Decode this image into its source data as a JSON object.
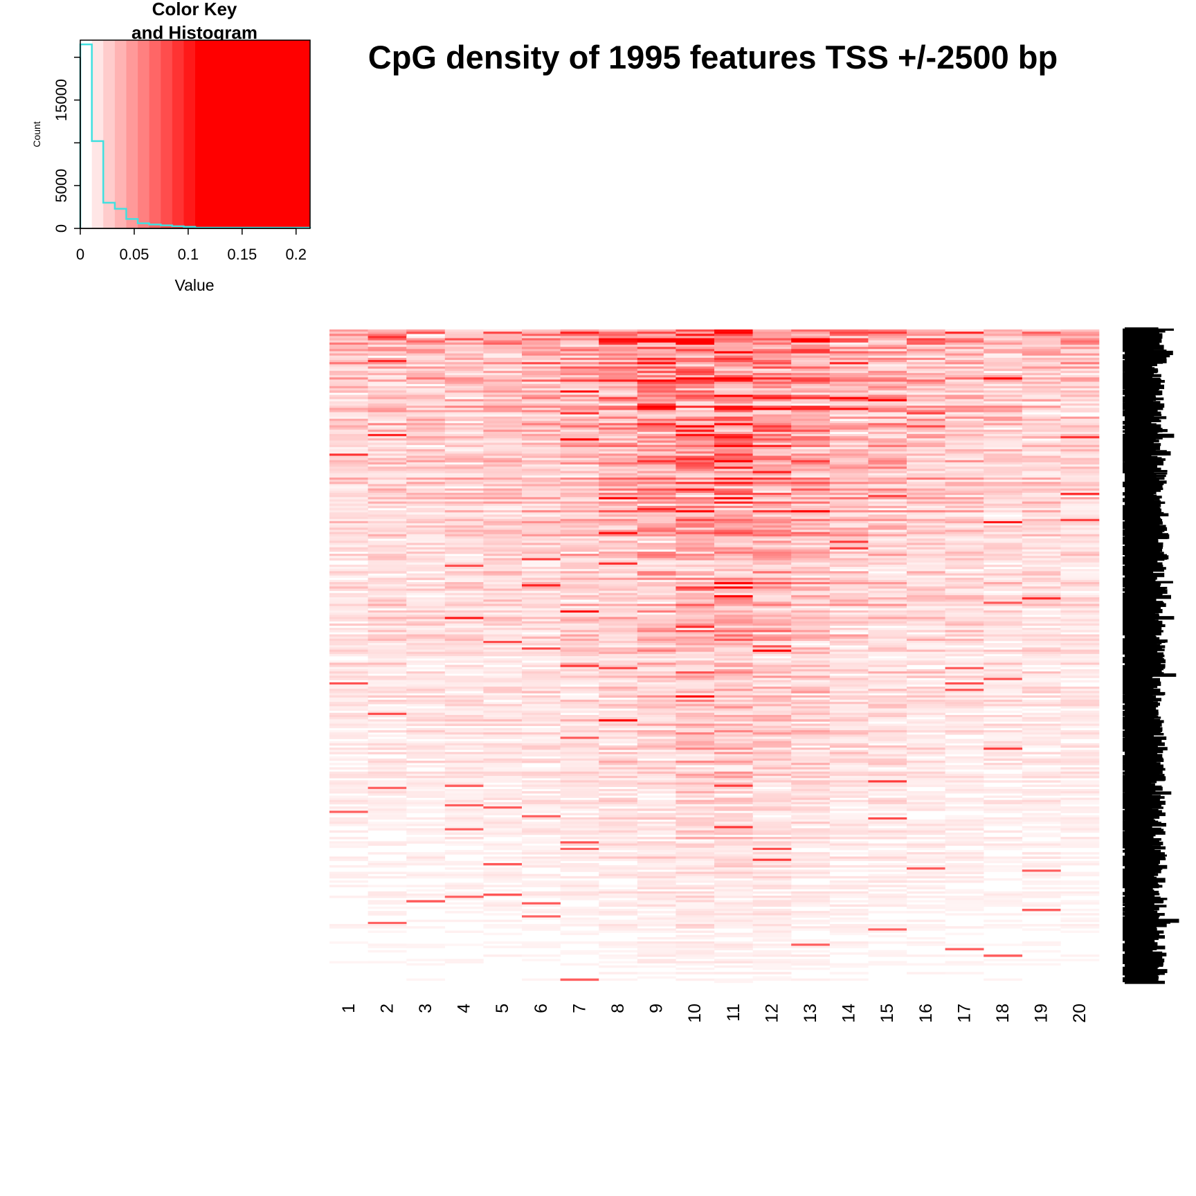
{
  "chart_data": [
    {
      "type": "histogram",
      "title": "Color Key\nand Histogram",
      "xlabel": "Value",
      "ylabel": "Count",
      "xlim": [
        0,
        0.213
      ],
      "ylim": [
        0,
        22000
      ],
      "x_ticks": [
        "0",
        "0.05",
        "0.1",
        "0.15",
        "0.2"
      ],
      "x_tick_values": [
        0,
        0.05,
        0.1,
        0.15,
        0.2
      ],
      "y_ticks": [
        "0",
        "5000",
        "15000"
      ],
      "y_tick_values": [
        0,
        5000,
        15000
      ],
      "grid": false,
      "color_scale": {
        "low": "#ffffff",
        "high": "#ff0000",
        "breaks": [
          0,
          0.0107,
          0.0213,
          0.032,
          0.0426,
          0.0533,
          0.0639,
          0.0746,
          0.0852,
          0.0959,
          0.1065,
          0.213
        ]
      },
      "histogram_color": "#40e0e0",
      "bins": [
        {
          "x0": 0.0,
          "x1": 0.0107,
          "count": 21500
        },
        {
          "x0": 0.0107,
          "x1": 0.0213,
          "count": 10200
        },
        {
          "x0": 0.0213,
          "x1": 0.032,
          "count": 3000
        },
        {
          "x0": 0.032,
          "x1": 0.0426,
          "count": 2300
        },
        {
          "x0": 0.0426,
          "x1": 0.0533,
          "count": 1100
        },
        {
          "x0": 0.0533,
          "x1": 0.0639,
          "count": 600
        },
        {
          "x0": 0.0639,
          "x1": 0.0746,
          "count": 450
        },
        {
          "x0": 0.0746,
          "x1": 0.0852,
          "count": 350
        },
        {
          "x0": 0.0852,
          "x1": 0.0959,
          "count": 250
        },
        {
          "x0": 0.0959,
          "x1": 0.1065,
          "count": 180
        },
        {
          "x0": 0.1065,
          "x1": 0.213,
          "count": 80
        }
      ]
    },
    {
      "type": "heatmap",
      "title": "CpG density of 1995 features TSS +/-2500 bp",
      "columns": [
        "1",
        "2",
        "3",
        "4",
        "5",
        "6",
        "7",
        "8",
        "9",
        "10",
        "11",
        "12",
        "13",
        "14",
        "15",
        "16",
        "17",
        "18",
        "19",
        "20"
      ],
      "rows": 1995,
      "row_labels_legible": false,
      "value_range": [
        0,
        0.213
      ],
      "low_color": "#ffffff",
      "high_color": "#ff0000",
      "column_mean_profile": [
        0.35,
        0.38,
        0.38,
        0.4,
        0.42,
        0.45,
        0.52,
        0.62,
        0.75,
        0.92,
        0.9,
        0.78,
        0.65,
        0.55,
        0.5,
        0.45,
        0.42,
        0.4,
        0.36,
        0.35
      ],
      "row_density_profile": {
        "description": "densest at top rows, decreasing toward bottom",
        "start": 1.0,
        "end": 0.08
      }
    }
  ]
}
